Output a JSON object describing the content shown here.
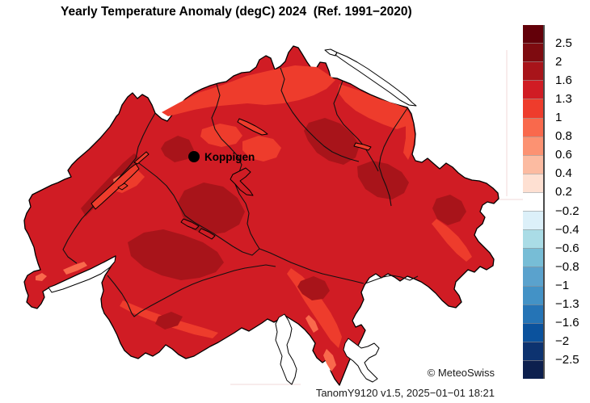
{
  "title": "Yearly Temperature Anomaly (degC) 2024  (Ref. 1991−2020)",
  "map": {
    "region": "Switzerland",
    "station": {
      "label": "Koppigen",
      "marker": "filled-black-circle"
    }
  },
  "colorbar": {
    "unit": "degC",
    "position": "right",
    "tick_labels": [
      "2.5",
      "2",
      "1.6",
      "1.3",
      "1",
      "0.8",
      "0.6",
      "0.4",
      "0.2",
      "−0.2",
      "−0.4",
      "−0.6",
      "−0.8",
      "−1",
      "−1.3",
      "−1.6",
      "−2",
      "−2.5"
    ],
    "band_colors": [
      "#630009",
      "#7e0b10",
      "#a8141a",
      "#d01c24",
      "#ee3c2c",
      "#f9694c",
      "#fc9272",
      "#fcbba1",
      "#fee0d2",
      "#ffffff",
      "#dcf0f9",
      "#aadce6",
      "#77bdd6",
      "#5aa2cd",
      "#4392c6",
      "#2574b6",
      "#0b529d",
      "#0d3370",
      "#0d204e"
    ]
  },
  "credits": {
    "copyright": "© MeteoSwiss"
  },
  "footer": {
    "version_line": "TanomY9120 v1.5, 2025−01−01 18:21"
  },
  "chart_data": {
    "type": "choropleth_map",
    "title": "Yearly Temperature Anomaly (degC) 2024  (Ref. 1991−2020)",
    "region": "Switzerland",
    "year": 2024,
    "reference_period": "1991−2020",
    "station_marker": "Koppigen",
    "legend_boundaries_degC": [
      2.5,
      2,
      1.6,
      1.3,
      1,
      0.8,
      0.6,
      0.4,
      0.2,
      -0.2,
      -0.4,
      -0.6,
      -0.8,
      -1,
      -1.3,
      -1.6,
      -2,
      -2.5
    ],
    "legend_position": "right",
    "map_reading": "whole country in positive anomaly bands: mostly 1.3–2.0 degC (red), higher-elevation patches 1.6–2.0 (dark red), main valleys 0.8–1.3 (light red/salmon)"
  }
}
